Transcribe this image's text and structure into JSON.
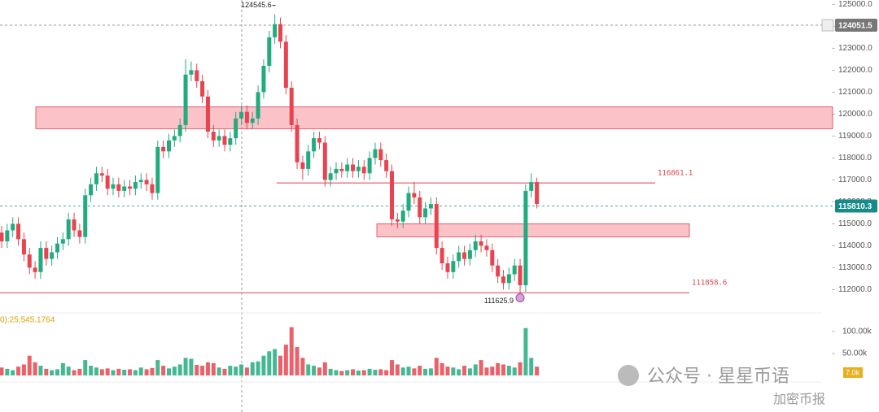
{
  "chart_data": {
    "type": "candlestick",
    "up_color": "#22ab7f",
    "down_color": "#e8444f",
    "open": [
      114600,
      114200,
      114700,
      115000,
      114300,
      113600,
      113000,
      112800,
      113900,
      113400,
      113700,
      114100,
      114300,
      115200,
      114700,
      114400,
      116300,
      116800,
      117300,
      117200,
      116600,
      116800,
      116500,
      116700,
      116600,
      116900,
      117000,
      116800,
      116400,
      118500,
      118300,
      118800,
      119000,
      119500,
      121800,
      122000,
      121500,
      120800,
      119200,
      118800,
      119000,
      118600,
      118900,
      119800,
      120100,
      119600,
      119800,
      121000,
      122200,
      123500,
      124100,
      123300,
      121200,
      119500,
      117800,
      117500,
      118300,
      118900,
      118700,
      117000,
      117300,
      117500,
      117400,
      117700,
      117400,
      117600,
      117300,
      118000,
      118400,
      117900,
      117400,
      115200,
      115100,
      115600,
      116400,
      116200,
      115300,
      115700,
      115900,
      113900,
      113200,
      112800,
      113300,
      113700,
      113400,
      113800,
      114200,
      114000,
      113800,
      113100,
      112600,
      112300,
      112700,
      113100,
      112200,
      116500,
      116900
    ],
    "high": [
      114900,
      115000,
      115300,
      115300,
      114600,
      113900,
      113300,
      114200,
      114200,
      114000,
      114400,
      114600,
      115500,
      115500,
      115000,
      116600,
      117100,
      117600,
      117600,
      117500,
      117100,
      117100,
      117000,
      117000,
      117200,
      117300,
      117300,
      117100,
      118800,
      118800,
      119100,
      119300,
      119800,
      122500,
      122400,
      122300,
      121800,
      121100,
      119500,
      119300,
      119300,
      119200,
      120100,
      120400,
      120400,
      120100,
      121300,
      122500,
      123800,
      124545.6,
      124400,
      123600,
      121500,
      119800,
      118100,
      118600,
      119200,
      119200,
      119000,
      117600,
      117800,
      117800,
      118000,
      118000,
      117900,
      117900,
      118300,
      118700,
      118700,
      118200,
      117700,
      115500,
      115900,
      116700,
      116900,
      116500,
      116000,
      116200,
      116200,
      114200,
      113500,
      113600,
      114000,
      114000,
      114100,
      114500,
      114500,
      114300,
      114100,
      113400,
      112900,
      113000,
      113400,
      113400,
      116800,
      117300,
      117100
    ],
    "low": [
      113900,
      113900,
      114400,
      114000,
      113300,
      112700,
      112500,
      112500,
      113100,
      113100,
      113400,
      113800,
      114000,
      114400,
      114100,
      114100,
      116000,
      116500,
      116900,
      116300,
      116300,
      116200,
      116200,
      116300,
      116300,
      116600,
      116500,
      116100,
      116100,
      118000,
      118000,
      118500,
      118700,
      119200,
      121500,
      121200,
      120500,
      118900,
      118500,
      118500,
      118300,
      118300,
      118600,
      119500,
      119300,
      119300,
      119500,
      120700,
      121900,
      123200,
      123000,
      120900,
      119200,
      117500,
      117000,
      117200,
      118000,
      118400,
      116700,
      116700,
      117000,
      117100,
      117100,
      117100,
      117100,
      117000,
      117000,
      117700,
      117600,
      117100,
      114900,
      114800,
      114800,
      115300,
      115900,
      115000,
      115000,
      115400,
      113600,
      112900,
      112500,
      112500,
      113000,
      113100,
      113100,
      113500,
      113700,
      113500,
      112800,
      112300,
      112000,
      112000,
      112400,
      111625.9,
      111900,
      116200,
      115700
    ],
    "close": [
      114200,
      114700,
      115000,
      114300,
      113600,
      113000,
      112800,
      113900,
      113400,
      113700,
      114100,
      114300,
      115200,
      114700,
      114400,
      116300,
      116800,
      117300,
      117200,
      116600,
      116800,
      116500,
      116700,
      116600,
      116900,
      117000,
      116800,
      116400,
      118500,
      118300,
      118800,
      119000,
      119500,
      121800,
      122000,
      121500,
      120800,
      119200,
      118800,
      119000,
      118600,
      118900,
      119800,
      120100,
      119600,
      119800,
      121000,
      122200,
      123500,
      124100,
      123300,
      121200,
      119500,
      117800,
      117500,
      118300,
      118900,
      118700,
      117000,
      117300,
      117500,
      117400,
      117700,
      117400,
      117600,
      117300,
      118000,
      118400,
      117900,
      117400,
      115200,
      115100,
      115600,
      116400,
      116200,
      115300,
      115700,
      115900,
      113900,
      113200,
      112800,
      113300,
      113700,
      113400,
      113800,
      114200,
      114000,
      113800,
      113100,
      112600,
      112300,
      112700,
      113100,
      112200,
      116500,
      116900,
      115900
    ],
    "volume": [
      18000,
      15000,
      12000,
      20000,
      25000,
      45000,
      30000,
      22000,
      15000,
      12000,
      14000,
      28000,
      20000,
      12000,
      15000,
      35000,
      22000,
      18000,
      14000,
      16000,
      12000,
      15000,
      13000,
      14000,
      12000,
      18000,
      14000,
      17000,
      35000,
      22000,
      16000,
      20000,
      25000,
      40000,
      38000,
      24000,
      22000,
      30000,
      28000,
      18000,
      15000,
      22000,
      20000,
      25000,
      18000,
      30000,
      32000,
      45000,
      55000,
      60000,
      45000,
      70000,
      110000,
      65000,
      40000,
      25000,
      22000,
      18000,
      30000,
      15000,
      12000,
      10000,
      12000,
      14000,
      11000,
      12000,
      15000,
      13000,
      14000,
      12000,
      35000,
      25000,
      18000,
      20000,
      16000,
      22000,
      15000,
      16000,
      40000,
      28000,
      20000,
      18000,
      14000,
      22000,
      16000,
      25000,
      35000,
      18000,
      20000,
      28000,
      25000,
      22000,
      18000,
      30000,
      108000,
      40000,
      20000
    ],
    "ylim": [
      111000,
      125200
    ],
    "yticks": [
      {
        "value": 112000,
        "label": "112000.0"
      },
      {
        "value": 113000,
        "label": "113000.0"
      },
      {
        "value": 114000,
        "label": "114000.0"
      },
      {
        "value": 115000,
        "label": "115000.0"
      },
      {
        "value": 116000,
        "label": "116000.0"
      },
      {
        "value": 117000,
        "label": "117000.0"
      },
      {
        "value": 118000,
        "label": "118000.0"
      },
      {
        "value": 119000,
        "label": "119000.0"
      },
      {
        "value": 120000,
        "label": "120000.0"
      },
      {
        "value": 121000,
        "label": "121000.0"
      },
      {
        "value": 122000,
        "label": "122000.0"
      },
      {
        "value": 123000,
        "label": "123000.0"
      },
      {
        "value": 124000,
        "label": "124000.0"
      },
      {
        "value": 125000,
        "label": "125000.0"
      }
    ],
    "volume_ylim": [
      0,
      124000
    ],
    "volume_yticks": [
      {
        "value": 100000,
        "label": "100.00k"
      },
      {
        "value": 50000,
        "label": "50.00k"
      }
    ],
    "volume_legend": "0):25,545.1764",
    "volume_tag": "7.0k",
    "zones": [
      {
        "low": 119333,
        "high": 120333
      },
      {
        "low": 114407,
        "high": 115000
      }
    ],
    "levels": [
      116861.1,
      111858.6
    ],
    "price_tags": [
      124051.5,
      115810.3
    ],
    "watermark": "公众号 · 星星币语",
    "watermark2": "加密币报"
  }
}
